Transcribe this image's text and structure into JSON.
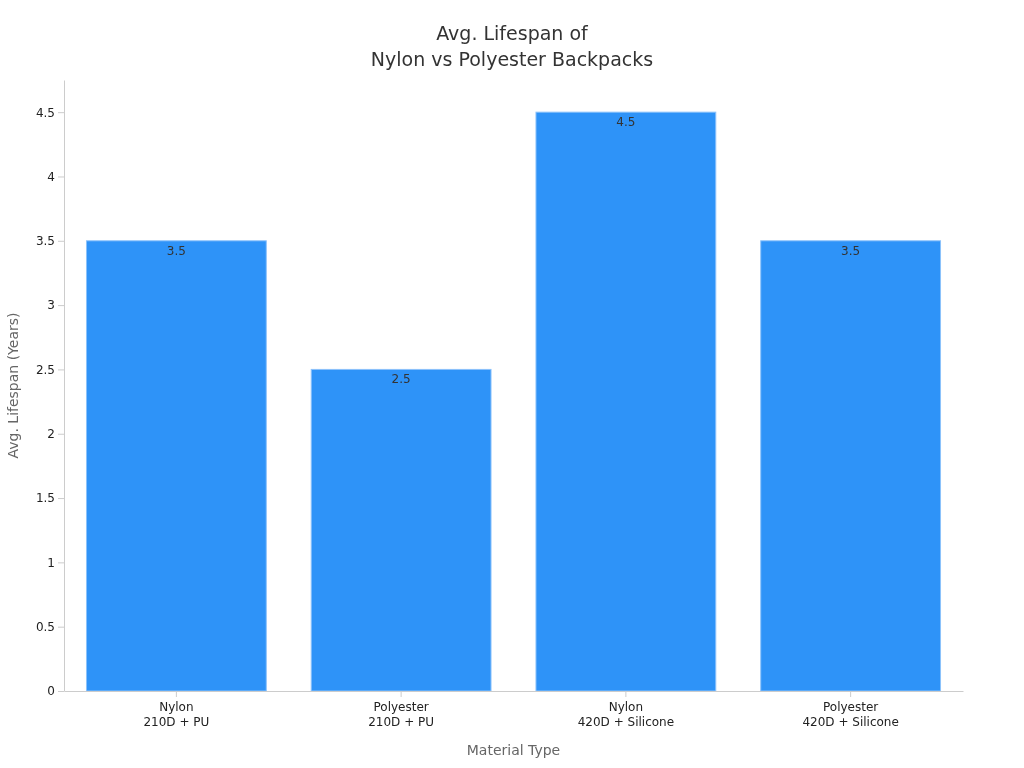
{
  "chart_data": {
    "type": "bar",
    "title": "Avg. Lifespan of\nNylon vs Polyester Backpacks",
    "xlabel": "Material Type",
    "ylabel": "Avg. Lifespan (Years)",
    "categories": [
      "Nylon\n210D + PU",
      "Polyester\n210D + PU",
      "Nylon\n420D + Silicone",
      "Polyester\n420D + Silicone"
    ],
    "values": [
      3.5,
      2.5,
      4.5,
      3.5
    ],
    "color": "#2e93f8",
    "ylim": [
      0,
      4.75
    ],
    "yticks": [
      0,
      {
        "value": 0.5,
        "label": "0.5"
      },
      1,
      {
        "value": 1.5,
        "label": "1.5"
      },
      2,
      {
        "value": 2.5,
        "label": "2.5"
      },
      3,
      {
        "value": 3.5,
        "label": "3.5"
      },
      4,
      {
        "value": 4.5,
        "label": "4.5"
      }
    ],
    "data_labels": true
  }
}
